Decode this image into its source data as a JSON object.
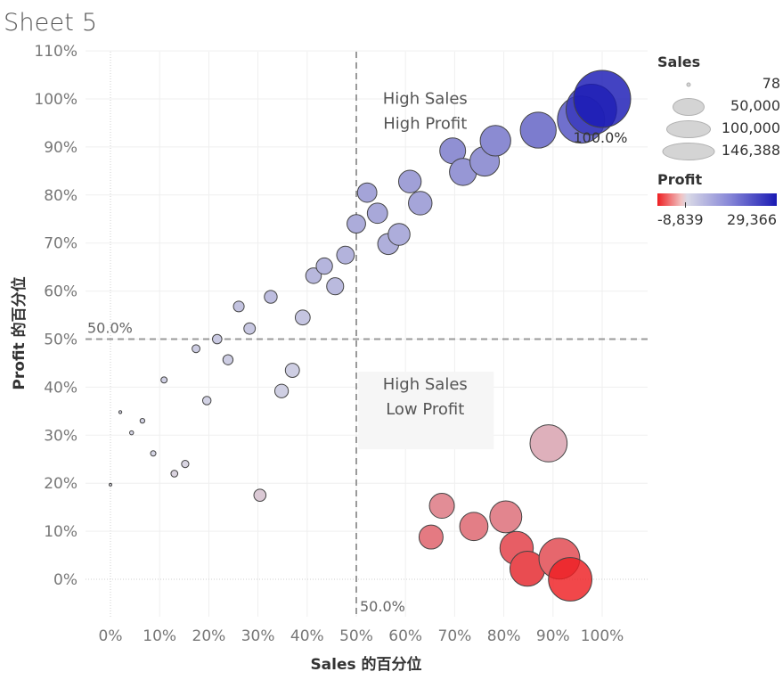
{
  "sheet_title": "Sheet 5",
  "chart_data": {
    "type": "scatter",
    "xlabel": "Sales 的百分位",
    "ylabel": "Profit 的百分位",
    "xlim": [
      -0.05,
      1.1
    ],
    "ylim": [
      -0.08,
      1.12
    ],
    "x_ticks": [
      "0%",
      "10%",
      "20%",
      "30%",
      "40%",
      "50%",
      "60%",
      "70%",
      "80%",
      "90%",
      "100%"
    ],
    "y_ticks": [
      "0%",
      "10%",
      "20%",
      "30%",
      "40%",
      "50%",
      "60%",
      "70%",
      "80%",
      "90%",
      "100%",
      "110%"
    ],
    "x_tick_values": [
      0,
      0.1,
      0.2,
      0.3,
      0.4,
      0.5,
      0.6,
      0.7,
      0.8,
      0.9,
      1.0
    ],
    "y_tick_values": [
      0,
      0.1,
      0.2,
      0.3,
      0.4,
      0.5,
      0.6,
      0.7,
      0.8,
      0.9,
      1.0,
      1.1
    ],
    "reference_lines": {
      "x": {
        "value": 0.5,
        "label": "50.0%"
      },
      "y": {
        "value": 0.5,
        "label": "50.0%"
      }
    },
    "annotations": [
      {
        "lines": [
          "High Sales",
          "High Profit"
        ],
        "x": 0.64,
        "y": 0.99,
        "box": false
      },
      {
        "lines": [
          "High Sales",
          "Low Profit"
        ],
        "x": 0.64,
        "y": 0.395,
        "box": true
      }
    ],
    "point_label": {
      "text": "100.0%",
      "x": 1.0,
      "y": 1.0
    },
    "legend_size": {
      "title": "Sales",
      "entries": [
        {
          "label": "78",
          "value": 78
        },
        {
          "label": "50,000",
          "value": 50000
        },
        {
          "label": "100,000",
          "value": 100000
        },
        {
          "label": "146,388",
          "value": 146388
        }
      ]
    },
    "legend_color": {
      "title": "Profit",
      "min_label": "-8,839",
      "max_label": "29,366",
      "min": -8839,
      "max": 29366,
      "low_color": "#ee1f22",
      "mid_color": "#d9d9e6",
      "high_color": "#1a1ab4"
    },
    "points": [
      {
        "x": 0.0,
        "y": 0.197,
        "sales": 78,
        "profit": 0
      },
      {
        "x": 0.02,
        "y": 0.348,
        "sales": 400,
        "profit": 10
      },
      {
        "x": 0.043,
        "y": 0.305,
        "sales": 700,
        "profit": 5
      },
      {
        "x": 0.065,
        "y": 0.33,
        "sales": 1000,
        "profit": 8
      },
      {
        "x": 0.087,
        "y": 0.262,
        "sales": 1300,
        "profit": 3
      },
      {
        "x": 0.109,
        "y": 0.415,
        "sales": 1700,
        "profit": 30
      },
      {
        "x": 0.13,
        "y": 0.22,
        "sales": 2100,
        "profit": -5
      },
      {
        "x": 0.152,
        "y": 0.24,
        "sales": 2400,
        "profit": -2
      },
      {
        "x": 0.174,
        "y": 0.48,
        "sales": 2800,
        "profit": 80
      },
      {
        "x": 0.196,
        "y": 0.372,
        "sales": 3200,
        "profit": 20
      },
      {
        "x": 0.217,
        "y": 0.5,
        "sales": 4000,
        "profit": 120
      },
      {
        "x": 0.239,
        "y": 0.457,
        "sales": 4600,
        "profit": 60
      },
      {
        "x": 0.261,
        "y": 0.568,
        "sales": 5200,
        "profit": 250
      },
      {
        "x": 0.283,
        "y": 0.522,
        "sales": 5900,
        "profit": 160
      },
      {
        "x": 0.304,
        "y": 0.175,
        "sales": 6600,
        "profit": -40
      },
      {
        "x": 0.326,
        "y": 0.588,
        "sales": 7400,
        "profit": 400
      },
      {
        "x": 0.348,
        "y": 0.392,
        "sales": 8300,
        "profit": 40
      },
      {
        "x": 0.37,
        "y": 0.435,
        "sales": 9000,
        "profit": 55
      },
      {
        "x": 0.391,
        "y": 0.545,
        "sales": 10000,
        "profit": 200
      },
      {
        "x": 0.413,
        "y": 0.632,
        "sales": 11000,
        "profit": 600
      },
      {
        "x": 0.435,
        "y": 0.652,
        "sales": 12000,
        "profit": 700
      },
      {
        "x": 0.457,
        "y": 0.61,
        "sales": 13000,
        "profit": 500
      },
      {
        "x": 0.478,
        "y": 0.675,
        "sales": 14000,
        "profit": 800
      },
      {
        "x": 0.5,
        "y": 0.74,
        "sales": 15500,
        "profit": 1200
      },
      {
        "x": 0.522,
        "y": 0.805,
        "sales": 17000,
        "profit": 1700
      },
      {
        "x": 0.543,
        "y": 0.762,
        "sales": 18500,
        "profit": 1400
      },
      {
        "x": 0.565,
        "y": 0.698,
        "sales": 20000,
        "profit": 1000
      },
      {
        "x": 0.587,
        "y": 0.718,
        "sales": 21500,
        "profit": 1100
      },
      {
        "x": 0.609,
        "y": 0.828,
        "sales": 23000,
        "profit": 2000
      },
      {
        "x": 0.63,
        "y": 0.783,
        "sales": 25000,
        "profit": 1600
      },
      {
        "x": 0.652,
        "y": 0.088,
        "sales": 26000,
        "profit": -2000
      },
      {
        "x": 0.674,
        "y": 0.153,
        "sales": 28000,
        "profit": -1200
      },
      {
        "x": 0.696,
        "y": 0.892,
        "sales": 30000,
        "profit": 3500
      },
      {
        "x": 0.717,
        "y": 0.848,
        "sales": 33000,
        "profit": 2800
      },
      {
        "x": 0.739,
        "y": 0.11,
        "sales": 36000,
        "profit": -1800
      },
      {
        "x": 0.761,
        "y": 0.87,
        "sales": 39000,
        "profit": 3000
      },
      {
        "x": 0.783,
        "y": 0.913,
        "sales": 42000,
        "profit": 4000
      },
      {
        "x": 0.804,
        "y": 0.13,
        "sales": 46000,
        "profit": -1500
      },
      {
        "x": 0.826,
        "y": 0.065,
        "sales": 50000,
        "profit": -3500
      },
      {
        "x": 0.848,
        "y": 0.022,
        "sales": 55000,
        "profit": -4800
      },
      {
        "x": 0.87,
        "y": 0.935,
        "sales": 58000,
        "profit": 6000
      },
      {
        "x": 0.891,
        "y": 0.283,
        "sales": 62000,
        "profit": -300
      },
      {
        "x": 0.913,
        "y": 0.043,
        "sales": 75000,
        "profit": -3000
      },
      {
        "x": 0.935,
        "y": 0.0,
        "sales": 85000,
        "profit": -8839
      },
      {
        "x": 0.957,
        "y": 0.957,
        "sales": 100000,
        "profit": 14000
      },
      {
        "x": 0.978,
        "y": 0.978,
        "sales": 115000,
        "profit": 20000
      },
      {
        "x": 1.0,
        "y": 1.0,
        "sales": 146388,
        "profit": 29366
      }
    ]
  }
}
